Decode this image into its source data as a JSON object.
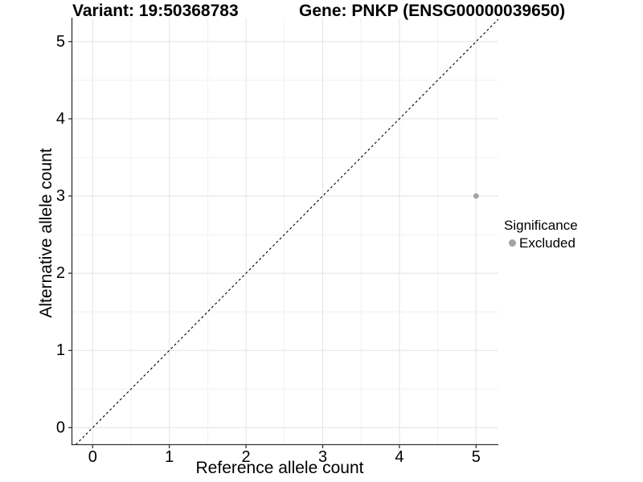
{
  "chart_data": {
    "type": "scatter",
    "title_left": "Variant: 19:50368783",
    "title_right": "Gene: PNKP (ENSG00000039650)",
    "xlabel": "Reference allele count",
    "ylabel": "Alternative allele count",
    "xlim": [
      -0.27,
      5.29
    ],
    "ylim": [
      -0.22,
      5.31
    ],
    "xticks": [
      0,
      1,
      2,
      3,
      4,
      5
    ],
    "yticks": [
      0,
      1,
      2,
      3,
      4,
      5
    ],
    "x_minor_ticks": [
      0.5,
      1.5,
      2.5,
      3.5,
      4.5
    ],
    "y_minor_ticks": [
      0.5,
      1.5,
      2.5,
      3.5,
      4.5
    ],
    "grid": "major+minor",
    "reference_line": {
      "type": "identity y=x",
      "style": "dashed",
      "color": "#000000"
    },
    "series": [
      {
        "name": "Excluded",
        "color": "#a3a3a3",
        "points": [
          {
            "x": 5,
            "y": 3
          }
        ]
      }
    ],
    "legend": {
      "title": "Significance",
      "position": "right",
      "items": [
        {
          "label": "Excluded",
          "color": "#a3a3a3"
        }
      ]
    },
    "colors": {
      "grid_major": "#e3e3e3",
      "grid_minor": "#f1f1f1",
      "axis": "#333333",
      "tick_text": "#000000"
    }
  }
}
